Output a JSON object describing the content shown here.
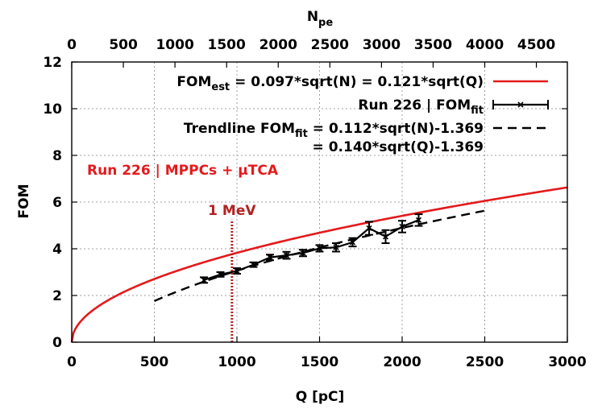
{
  "chart_data": {
    "type": "line",
    "xlabel": "Q [pC]",
    "ylabel": "FOM",
    "x2label": "N",
    "x2label_sub": "pe",
    "xlim": [
      0,
      3000
    ],
    "ylim": [
      0,
      12
    ],
    "x2lim": [
      0,
      4800
    ],
    "x_ticks": [
      "0",
      "500",
      "1000",
      "1500",
      "2000",
      "2500",
      "3000"
    ],
    "y_ticks": [
      "0",
      "2",
      "4",
      "6",
      "8",
      "10",
      "12"
    ],
    "x2_ticks": [
      "0",
      "500",
      "1000",
      "1500",
      "2000",
      "2500",
      "3000",
      "3500",
      "4000",
      "4500"
    ],
    "grid": true,
    "legend_position": "top-right",
    "colors": {
      "estimate": "#e41a1c",
      "data": "#000000",
      "marker": "#b22222"
    },
    "legend": [
      {
        "parts": [
          [
            "FOM",
            ""
          ],
          [
            "est",
            "sub"
          ],
          [
            " = 0.097*sqrt(N) = 0.121*sqrt(Q)",
            ""
          ]
        ],
        "style": "red-solid"
      },
      {
        "parts": [
          [
            "Run 226 | FOM",
            ""
          ],
          [
            "fit",
            "sub"
          ]
        ],
        "style": "errorbar"
      },
      {
        "parts": [
          [
            "Trendline FOM",
            ""
          ],
          [
            "fit",
            "sub"
          ],
          [
            " = 0.112*sqrt(N)-1.369",
            ""
          ]
        ],
        "style": "black-dashed"
      },
      {
        "parts": [
          [
            "= 0.140*sqrt(Q)-1.369",
            ""
          ]
        ],
        "style": "none"
      }
    ],
    "annotation_run": "Run 226 | MPPCs + µTCA",
    "marker_line": {
      "x": 970,
      "label": "1 MeV"
    },
    "series": [
      {
        "name": "FOMest = 0.097*sqrt(N) = 0.121*sqrt(Q)",
        "kind": "function",
        "coef": 0.121,
        "offset": 0,
        "x_from": 0,
        "x_to": 3000
      },
      {
        "name": "Run 226 | FOMfit",
        "kind": "errorbar",
        "x": [
          800,
          900,
          1000,
          1100,
          1200,
          1300,
          1400,
          1500,
          1600,
          1700,
          1800,
          1900,
          2000,
          2100
        ],
        "y": [
          2.66,
          2.9,
          3.05,
          3.32,
          3.63,
          3.72,
          3.82,
          4.02,
          4.06,
          4.28,
          4.88,
          4.52,
          4.95,
          5.23
        ],
        "err": [
          0.12,
          0.1,
          0.12,
          0.1,
          0.12,
          0.15,
          0.14,
          0.14,
          0.18,
          0.18,
          0.28,
          0.28,
          0.25,
          0.25
        ]
      },
      {
        "name": "Trendline FOMfit = 0.112*sqrt(N)-1.369 = 0.140*sqrt(Q)-1.369",
        "kind": "function",
        "coef": 0.14,
        "offset": -1.369,
        "x_from": 500,
        "x_to": 2500
      }
    ]
  }
}
